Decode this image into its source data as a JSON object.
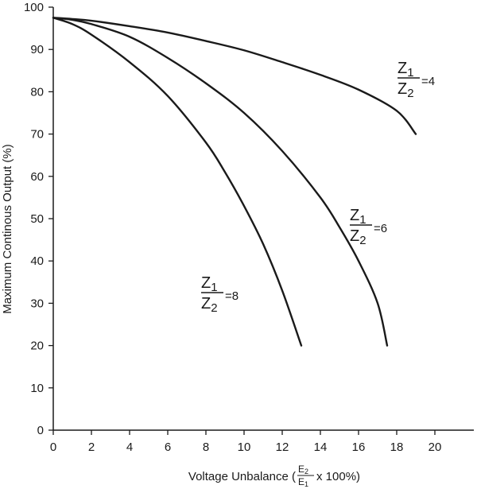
{
  "chart_data": {
    "type": "line",
    "xlabel": "Voltage Unbalance (",
    "xlabel_frac_num": "E",
    "xlabel_frac_num_sub": "2",
    "xlabel_frac_den": "E",
    "xlabel_frac_den_sub": "1",
    "xlabel_suffix": "x 100%)",
    "ylabel": "Maximum Continous Output (%)",
    "xlim": [
      0,
      22
    ],
    "ylim": [
      0,
      100
    ],
    "xticks": [
      0,
      2,
      4,
      6,
      8,
      10,
      12,
      14,
      16,
      18,
      20
    ],
    "yticks": [
      0,
      10,
      20,
      30,
      40,
      50,
      60,
      70,
      80,
      90,
      100
    ],
    "grid": false,
    "legend": "none",
    "series": [
      {
        "name": "Z1/Z2 =4",
        "ratio_num": "Z",
        "ratio_num_sub": "1",
        "ratio_den": "Z",
        "ratio_den_sub": "2",
        "ratio_value": "=4",
        "x": [
          0,
          1,
          2,
          4,
          6,
          8,
          10,
          12,
          14,
          16,
          18,
          19
        ],
        "y": [
          97.5,
          97.2,
          96.8,
          95.5,
          94.0,
          92.0,
          89.8,
          87.0,
          84.0,
          80.5,
          75.5,
          70.0
        ]
      },
      {
        "name": "Z1/Z2 =6",
        "ratio_num": "Z",
        "ratio_num_sub": "1",
        "ratio_den": "Z",
        "ratio_den_sub": "2",
        "ratio_value": "=6",
        "x": [
          0,
          1,
          2,
          4,
          6,
          8,
          10,
          12,
          14,
          15,
          16,
          17,
          17.5
        ],
        "y": [
          97.5,
          97.0,
          96.0,
          93.0,
          88.0,
          82.0,
          75.0,
          66.0,
          55.0,
          48.0,
          40.0,
          30.0,
          20.0
        ]
      },
      {
        "name": "Z1/Z2 =8",
        "ratio_num": "Z",
        "ratio_num_sub": "1",
        "ratio_den": "Z",
        "ratio_den_sub": "2",
        "ratio_value": "=8",
        "x": [
          0,
          1,
          2,
          4,
          6,
          8,
          9,
          10,
          11,
          12,
          13
        ],
        "y": [
          97.5,
          96.0,
          93.5,
          87.0,
          79.0,
          68.0,
          61.0,
          53.0,
          44.0,
          33.0,
          20.0
        ]
      }
    ]
  }
}
